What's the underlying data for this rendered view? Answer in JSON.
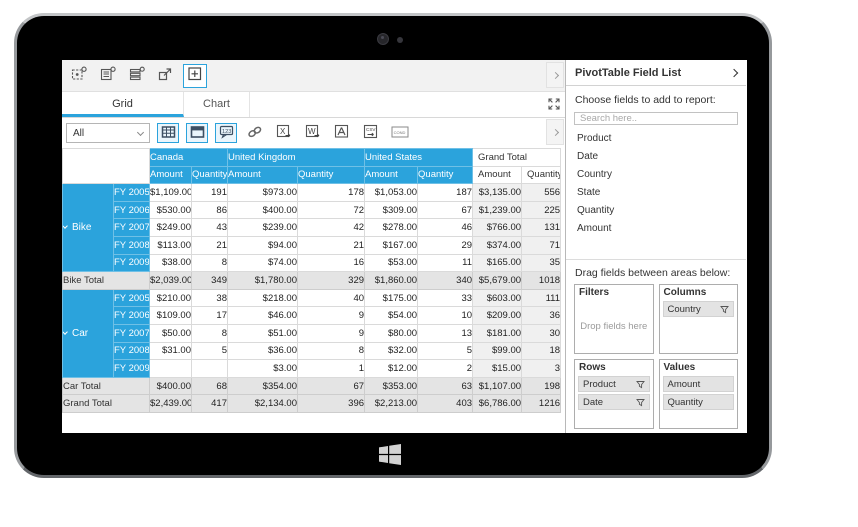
{
  "toolbar": {
    "buttons": [
      {
        "name": "field-chooser-button",
        "icon": "pivot-field-box-icon",
        "selected": false
      },
      {
        "name": "report-layout-button",
        "icon": "report-lines-icon",
        "selected": false
      },
      {
        "name": "field-rows-button",
        "icon": "field-rows-icon",
        "selected": false
      },
      {
        "name": "open-new-window-button",
        "icon": "popout-icon",
        "selected": false
      },
      {
        "name": "add-field-button",
        "icon": "add-plus-icon",
        "selected": true
      }
    ]
  },
  "tabs": [
    {
      "label": "Grid",
      "active": true
    },
    {
      "label": "Chart",
      "active": false
    }
  ],
  "ribbon": {
    "filter_dropdown": {
      "value": "All"
    },
    "buttons": [
      {
        "name": "grid-view-button",
        "icon": "grid-view-icon",
        "selected": true
      },
      {
        "name": "flat-layout-button",
        "icon": "flat-layout-icon",
        "selected": true
      },
      {
        "name": "show-values-button",
        "icon": "numbers-123-icon",
        "selected": true,
        "glyph": "123"
      },
      {
        "name": "link-button",
        "icon": "link-chain-icon",
        "selected": false
      },
      {
        "name": "export-excel-button",
        "icon": "export-excel-icon",
        "selected": false,
        "glyph": "X"
      },
      {
        "name": "export-word-button",
        "icon": "export-word-icon",
        "selected": false,
        "glyph": "W"
      },
      {
        "name": "export-pdf-button",
        "icon": "export-pdf-icon",
        "selected": false
      },
      {
        "name": "export-csv-button",
        "icon": "export-csv-icon",
        "selected": false,
        "glyph": "CSV"
      },
      {
        "name": "conditional-formatting-button",
        "icon": "conditional-formatting-icon",
        "selected": false,
        "glyph": "COND"
      }
    ]
  },
  "pivot": {
    "column_groups": [
      {
        "label": "Canada",
        "accent": true
      },
      {
        "label": "United Kingdom",
        "accent": true
      },
      {
        "label": "United States",
        "accent": true
      },
      {
        "label": "Grand Total",
        "accent": false
      }
    ],
    "sub_header": [
      "Amount",
      "Quantity"
    ],
    "groups": [
      {
        "label": "Bike",
        "expanded": true,
        "rows": [
          {
            "fy": "FY 2005",
            "values": [
              "$1,109.00",
              "191",
              "$973.00",
              "178",
              "$1,053.00",
              "187",
              "$3,135.00",
              "556"
            ]
          },
          {
            "fy": "FY 2006",
            "values": [
              "$530.00",
              "86",
              "$400.00",
              "72",
              "$309.00",
              "67",
              "$1,239.00",
              "225"
            ]
          },
          {
            "fy": "FY 2007",
            "values": [
              "$249.00",
              "43",
              "$239.00",
              "42",
              "$278.00",
              "46",
              "$766.00",
              "131"
            ]
          },
          {
            "fy": "FY 2008",
            "values": [
              "$113.00",
              "21",
              "$94.00",
              "21",
              "$167.00",
              "29",
              "$374.00",
              "71"
            ]
          },
          {
            "fy": "FY 2009",
            "values": [
              "$38.00",
              "8",
              "$74.00",
              "16",
              "$53.00",
              "11",
              "$165.00",
              "35"
            ]
          }
        ],
        "total": {
          "label": "Bike Total",
          "values": [
            "$2,039.00",
            "349",
            "$1,780.00",
            "329",
            "$1,860.00",
            "340",
            "$5,679.00",
            "1018"
          ]
        }
      },
      {
        "label": "Car",
        "expanded": true,
        "rows": [
          {
            "fy": "FY 2005",
            "values": [
              "$210.00",
              "38",
              "$218.00",
              "40",
              "$175.00",
              "33",
              "$603.00",
              "111"
            ]
          },
          {
            "fy": "FY 2006",
            "values": [
              "$109.00",
              "17",
              "$46.00",
              "9",
              "$54.00",
              "10",
              "$209.00",
              "36"
            ]
          },
          {
            "fy": "FY 2007",
            "values": [
              "$50.00",
              "8",
              "$51.00",
              "9",
              "$80.00",
              "13",
              "$181.00",
              "30"
            ]
          },
          {
            "fy": "FY 2008",
            "values": [
              "$31.00",
              "5",
              "$36.00",
              "8",
              "$32.00",
              "5",
              "$99.00",
              "18"
            ]
          },
          {
            "fy": "FY 2009",
            "values": [
              "",
              "",
              "$3.00",
              "1",
              "$12.00",
              "2",
              "$15.00",
              "3"
            ]
          }
        ],
        "total": {
          "label": "Car Total",
          "values": [
            "$400.00",
            "68",
            "$354.00",
            "67",
            "$353.00",
            "63",
            "$1,107.00",
            "198"
          ]
        }
      }
    ],
    "grand_total": {
      "label": "Grand Total",
      "values": [
        "$2,439.00",
        "417",
        "$2,134.00",
        "396",
        "$2,213.00",
        "403",
        "$6,786.00",
        "1216"
      ]
    }
  },
  "field_list": {
    "title": "PivotTable Field List",
    "subtitle": "Choose fields to add to report:",
    "search_placeholder": "Search here..",
    "fields": [
      "Product",
      "Date",
      "Country",
      "State",
      "Quantity",
      "Amount"
    ],
    "drag_hint": "Drag fields between areas below:",
    "areas": {
      "filters": {
        "label": "Filters",
        "empty_hint": "Drop fields here",
        "chips": []
      },
      "columns": {
        "label": "Columns",
        "chips": [
          {
            "name": "Country",
            "filter": true
          }
        ]
      },
      "rows": {
        "label": "Rows",
        "chips": [
          {
            "name": "Product",
            "filter": true
          },
          {
            "name": "Date",
            "filter": true
          }
        ]
      },
      "values": {
        "label": "Values",
        "chips": [
          {
            "name": "Amount",
            "filter": false
          },
          {
            "name": "Quantity",
            "filter": false
          }
        ]
      }
    }
  },
  "colors": {
    "accent": "#2BA3DC",
    "total_row_bg": "#E4E4E4",
    "grand_total_col_bg": "#F0F0F0",
    "toolbar_bg": "#F2F2F2"
  }
}
